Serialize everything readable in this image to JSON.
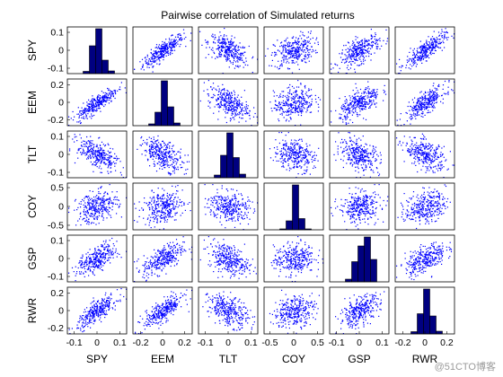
{
  "chart_data": {
    "type": "scatter-matrix",
    "title": "Pairwise correlation of Simulated returns",
    "variables": [
      "SPY",
      "EEM",
      "TLT",
      "COY",
      "GSP",
      "RWR"
    ],
    "y_ticks": [
      [
        "0.1",
        "0",
        "-0.1"
      ],
      [
        "0.2",
        "0",
        "-0.2"
      ],
      [
        "0.1",
        "0",
        "-0.1"
      ],
      [
        "0.5",
        "0",
        "-0.5"
      ],
      [
        "0.1",
        "0",
        "-0.1"
      ],
      [
        "0.2",
        "0",
        "-0.2"
      ]
    ],
    "x_ticks": [
      [
        "-0.1",
        "0",
        "0.1"
      ],
      [
        "-0.2",
        "0",
        "0.2"
      ],
      [
        "-0.1",
        "0",
        "0.1"
      ],
      [
        "-0.5",
        "0",
        "0.5"
      ],
      [
        "-0.1",
        "0",
        "0.1"
      ],
      [
        "-0.2",
        "0",
        "0.2"
      ]
    ],
    "y_tick_values": [
      [
        0.1,
        0,
        -0.1
      ],
      [
        0.2,
        0,
        -0.2
      ],
      [
        0.1,
        0,
        -0.1
      ],
      [
        0.5,
        0,
        -0.5
      ],
      [
        0.1,
        0,
        -0.1
      ],
      [
        0.2,
        0,
        -0.2
      ]
    ],
    "x_tick_values": [
      [
        -0.1,
        0,
        0.1
      ],
      [
        -0.2,
        0,
        0.2
      ],
      [
        -0.1,
        0,
        0.1
      ],
      [
        -0.5,
        0,
        0.5
      ],
      [
        -0.1,
        0,
        0.1
      ],
      [
        -0.2,
        0,
        0.2
      ]
    ],
    "axis_ranges": [
      [
        -0.13,
        0.13
      ],
      [
        -0.27,
        0.27
      ],
      [
        -0.13,
        0.13
      ],
      [
        -0.62,
        0.62
      ],
      [
        -0.13,
        0.13
      ],
      [
        -0.27,
        0.27
      ]
    ],
    "correlations": [
      [
        1.0,
        0.85,
        -0.55,
        0.3,
        0.65,
        0.8
      ],
      [
        0.85,
        1.0,
        -0.5,
        0.25,
        0.6,
        0.75
      ],
      [
        -0.55,
        -0.5,
        1.0,
        -0.2,
        -0.4,
        -0.45
      ],
      [
        0.3,
        0.25,
        -0.2,
        1.0,
        0.15,
        0.25
      ],
      [
        0.65,
        0.6,
        -0.4,
        0.15,
        1.0,
        0.55
      ],
      [
        0.8,
        0.75,
        -0.45,
        0.25,
        0.55,
        1.0
      ]
    ],
    "histograms": [
      [
        0.05,
        0.62,
        1.0,
        0.3,
        0.06
      ],
      [
        0.04,
        0.3,
        1.0,
        0.42,
        0.06
      ],
      [
        0.06,
        0.5,
        1.0,
        0.45,
        0.08
      ],
      [
        0.02,
        0.2,
        1.0,
        0.25,
        0.02
      ],
      [
        0.06,
        0.45,
        0.8,
        1.0,
        0.5
      ],
      [
        0.05,
        0.45,
        1.0,
        0.4,
        0.06
      ]
    ],
    "marker_color": "#0000ff",
    "histogram_color": "#000080",
    "grid": false
  },
  "watermark": "@51CTO博客"
}
